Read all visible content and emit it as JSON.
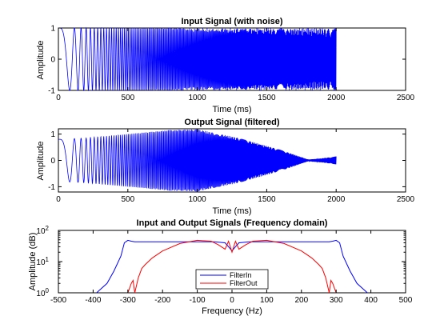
{
  "colors": {
    "background": "#ffffff",
    "axes": "#000000",
    "filter_in": "#0000ff",
    "filter_out": "#ff0000"
  },
  "chart_data": [
    {
      "type": "line",
      "title": "Input Signal (with noise)",
      "xlabel": "Time (ms)",
      "ylabel": "Amplitude",
      "xlim": [
        0,
        2500
      ],
      "ylim": [
        -1,
        1
      ],
      "xticks": [
        "0",
        "500",
        "1000",
        "1500",
        "2000",
        "2500"
      ],
      "yticks": [
        "-1",
        "0",
        "1"
      ],
      "grid": false,
      "legend": null,
      "series": [
        {
          "color": "#0000ff",
          "description": "linear chirp, amplitude 1, frequency increasing from ~0 Hz at 0 ms, with slight noise; ends at 2000 ms",
          "t_range_ms": [
            0,
            2000
          ],
          "amplitude": 1.0
        }
      ]
    },
    {
      "type": "line",
      "title": "Output Signal (filtered)",
      "xlabel": "Time (ms)",
      "ylabel": "Amplitude",
      "xlim": [
        0,
        2500
      ],
      "ylim": [
        -1.2,
        1.2
      ],
      "xticks": [
        "0",
        "500",
        "1000",
        "1500",
        "2000",
        "2500"
      ],
      "yticks": [
        "-1",
        "0",
        "1"
      ],
      "grid": false,
      "legend": null,
      "series": [
        {
          "color": "#0000ff",
          "description": "filtered chirp; envelope peaks ~1.2 around 900-1000 ms, falls to ~0 near 1800 ms, small tail ~0.15 at 2000 ms",
          "t_range_ms": [
            0,
            2000
          ],
          "envelope": {
            "t_ms": [
              0,
              200,
              500,
              800,
              1000,
              1300,
              1600,
              1800,
              1900,
              2000
            ],
            "amp": [
              0.8,
              0.85,
              1.0,
              1.15,
              1.18,
              0.85,
              0.4,
              0.03,
              0.08,
              0.15
            ]
          }
        }
      ]
    },
    {
      "type": "line",
      "title": "Input and Output Signals (Frequency domain)",
      "xlabel": "Frequency (Hz)",
      "ylabel": "Amplitude (dB)",
      "xlim": [
        -500,
        500
      ],
      "ylim": [
        1,
        100
      ],
      "yscale": "log",
      "xticks": [
        "-500",
        "-400",
        "-300",
        "-200",
        "-100",
        "0",
        "100",
        "200",
        "300",
        "400",
        "500"
      ],
      "yticks": [
        "10^0",
        "10^1",
        "10^2"
      ],
      "grid": false,
      "legend": {
        "position": "lower-center",
        "entries": [
          "FilterIn",
          "FilterOut"
        ]
      },
      "series": [
        {
          "name": "FilterIn",
          "color": "#0000ff",
          "x": [
            -390,
            -360,
            -340,
            -320,
            -310,
            -300,
            -290,
            -280,
            -250,
            -200,
            -150,
            -100,
            -50,
            -20,
            -10,
            0,
            10,
            20,
            50,
            100,
            150,
            200,
            250,
            280,
            290,
            300,
            310,
            320,
            340,
            360,
            390
          ],
          "y": [
            1,
            2,
            5,
            15,
            40,
            48,
            45,
            43,
            43,
            43,
            43,
            43,
            43,
            40,
            30,
            22,
            30,
            40,
            43,
            43,
            43,
            43,
            43,
            43,
            45,
            48,
            40,
            15,
            5,
            2,
            1
          ]
        },
        {
          "name": "FilterOut",
          "color": "#ff0000",
          "x": [
            -300,
            -290,
            -285,
            -280,
            -270,
            -260,
            -250,
            -230,
            -200,
            -150,
            -100,
            -60,
            -40,
            -20,
            -10,
            0,
            10,
            20,
            40,
            60,
            100,
            150,
            200,
            230,
            250,
            260,
            270,
            280,
            285,
            290,
            300
          ],
          "y": [
            1,
            2,
            2.5,
            1,
            3,
            6,
            8,
            13,
            22,
            38,
            48,
            45,
            35,
            25,
            45,
            20,
            45,
            25,
            35,
            45,
            48,
            38,
            22,
            13,
            8,
            6,
            3,
            1,
            2.5,
            2,
            1
          ]
        }
      ]
    }
  ]
}
